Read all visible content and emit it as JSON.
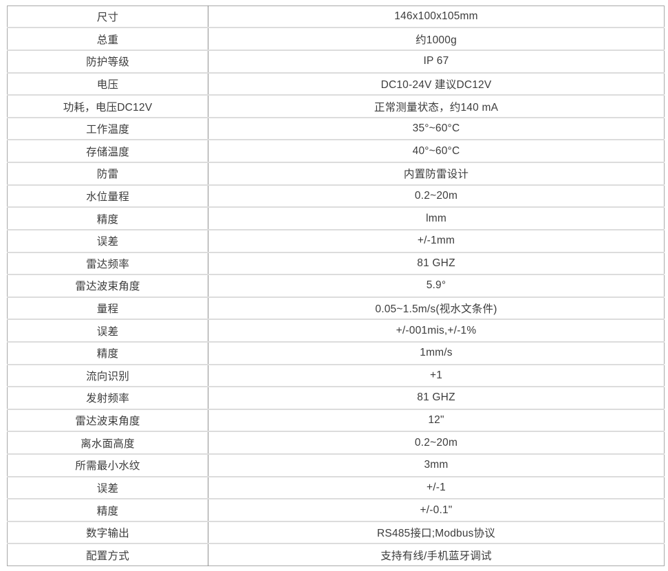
{
  "table": {
    "rows": [
      {
        "label": "尺寸",
        "value": "146x100x105mm"
      },
      {
        "label": "总重",
        "value": "约1000g"
      },
      {
        "label": "防护等级",
        "value": "IP 67"
      },
      {
        "label": "电压",
        "value": "DC10-24V 建议DC12V"
      },
      {
        "label": "功耗，电压DC12V",
        "value": "正常测量状态，约140 mA"
      },
      {
        "label": "工作温度",
        "value": "35°~60°C"
      },
      {
        "label": "存储温度",
        "value": "40°~60°C"
      },
      {
        "label": "防雷",
        "value": "内置防雷设计"
      },
      {
        "label": "水位量程",
        "value": "0.2~20m"
      },
      {
        "label": "精度",
        "value": "lmm"
      },
      {
        "label": "误差",
        "value": "+/-1mm"
      },
      {
        "label": "雷达频率",
        "value": "81 GHZ"
      },
      {
        "label": "雷达波束角度",
        "value": "5.9°"
      },
      {
        "label": "量程",
        "value": "0.05~1.5m/s(视水文条件)"
      },
      {
        "label": "误差",
        "value": "+/-001mis,+/-1%"
      },
      {
        "label": "精度",
        "value": "1mm/s"
      },
      {
        "label": "流向识别",
        "value": "+1"
      },
      {
        "label": "发射频率",
        "value": "81 GHZ"
      },
      {
        "label": "雷达波束角度",
        "value": "12\""
      },
      {
        "label": "离水面高度",
        "value": "0.2~20m"
      },
      {
        "label": "所需最小水纹",
        "value": "3mm"
      },
      {
        "label": "误差",
        "value": "+/-1"
      },
      {
        "label": "精度",
        "value": "+/-0.1\""
      },
      {
        "label": "数字输出",
        "value": "RS485接口;Modbus协议"
      },
      {
        "label": "配置方式",
        "value": "支持有线/手机蓝牙调试"
      }
    ]
  }
}
